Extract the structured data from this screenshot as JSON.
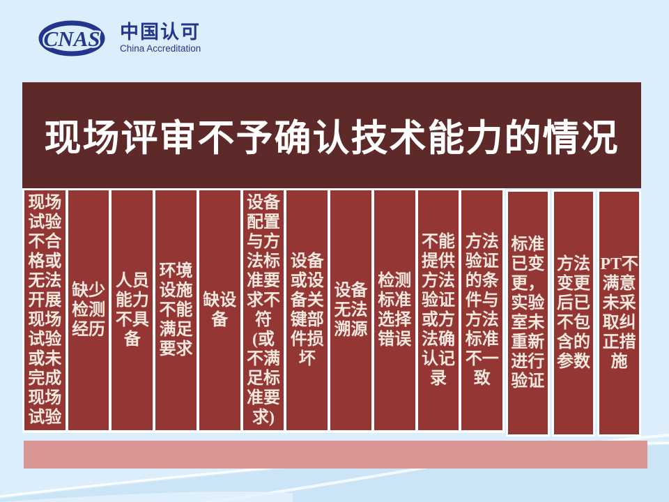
{
  "logo": {
    "acronym": "CNAS",
    "name_cn": "中国认可",
    "name_en": "China Accreditation"
  },
  "title": "现场评审不予确认技术能力的情况",
  "columns": [
    {
      "text": "现场试验不合格或无法开展现场试验或未完成现场试验",
      "lines": [
        "现场",
        "试验",
        "不合",
        "格或",
        "无法",
        "开展",
        "现场",
        "试验",
        "或未",
        "完成",
        "现场",
        "试验"
      ],
      "framed": false
    },
    {
      "text": "缺少检测经历",
      "lines": [
        "缺少",
        "检测",
        "经历"
      ],
      "framed": false
    },
    {
      "text": "人员能力不具备",
      "lines": [
        "人员",
        "能力",
        "不具",
        "备"
      ],
      "framed": false
    },
    {
      "text": "环境设施不能满足要求",
      "lines": [
        "环境",
        "设施",
        "不能",
        "满足",
        "要求"
      ],
      "framed": false
    },
    {
      "text": "缺设备",
      "lines": [
        "缺设",
        "备"
      ],
      "framed": false
    },
    {
      "text": "设备配置与方法标准要求不符(或不满足标准要求)",
      "lines": [
        "设备",
        "配置",
        "与方",
        "法标",
        "准要",
        "求不",
        "符",
        "(或",
        "不满",
        "足标",
        "准要",
        "求)"
      ],
      "framed": false
    },
    {
      "text": "设备或设备关键部件损坏",
      "lines": [
        "设备",
        "或设",
        "备关",
        "键部",
        "件损",
        "坏"
      ],
      "framed": false
    },
    {
      "text": "设备无法溯源",
      "lines": [
        "设备",
        "无法",
        "溯源"
      ],
      "framed": false
    },
    {
      "text": "检测标准选择错误",
      "lines": [
        "检测",
        "标准",
        "选择",
        "错误"
      ],
      "framed": false
    },
    {
      "text": "不能提供方法验证或方法确认记录",
      "lines": [
        "不能",
        "提供",
        "方法",
        "验证",
        "或方",
        "法确",
        "认记",
        "录"
      ],
      "framed": false
    },
    {
      "text": "方法验证的条件与方法标准不一致",
      "lines": [
        "方法",
        "验证",
        "的条",
        "件与",
        "方法",
        "标准",
        "不一",
        "致"
      ],
      "framed": false
    },
    {
      "text": "标准已变更，实验室未重新进行验证",
      "lines": [
        "标准",
        "已变",
        "更，",
        "实验",
        "室未",
        "重新",
        "进行",
        "验证"
      ],
      "framed": true
    },
    {
      "text": "方法变更后已不包含的参数",
      "lines": [
        "方法",
        "变更",
        "后已",
        "不包",
        "含的",
        "参数"
      ],
      "framed": true
    },
    {
      "text": "PT不满意未采取纠正措施",
      "lines": [
        "PT不",
        "满意",
        "未采",
        "取纠",
        "正措",
        "施"
      ],
      "framed": true
    }
  ],
  "colors": {
    "background": "#dceefb",
    "banner_red": "#5e2929",
    "column_red": "#943634",
    "column_text": "#f5e9df",
    "footer_bar": "#d99694",
    "logo_navy": "#23358c",
    "title_text": "#ffffff"
  }
}
